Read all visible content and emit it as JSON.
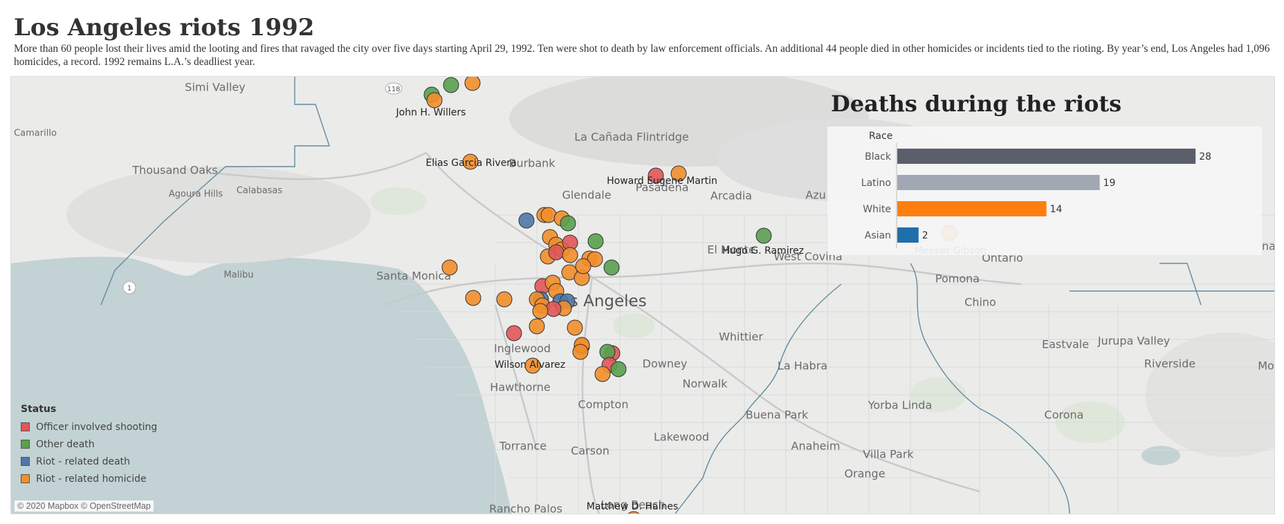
{
  "header": {
    "title": "Los Angeles riots 1992",
    "subtitle": "More than 60 people lost their lives amid the looting and fires that ravaged the city over five days starting April 29, 1992. Ten were shot to death by law enforcement officials. An additional 44 people died in other homicides or incidents tied to the rioting. By year’s end, Los Angeles had 1,096 homicides, a record. 1992 remains L.A.’s deadliest year."
  },
  "map": {
    "attribution": "© 2020 Mapbox © OpenStreetMap",
    "places": [
      {
        "name": "Simi Valley",
        "size": "med"
      },
      {
        "name": "Camarillo",
        "size": "sm"
      },
      {
        "name": "Thousand Oaks",
        "size": "med"
      },
      {
        "name": "Agoura Hills",
        "size": "sm"
      },
      {
        "name": "Calabasas",
        "size": "sm"
      },
      {
        "name": "Malibu",
        "size": "sm"
      },
      {
        "name": "Santa Monica",
        "size": "med"
      },
      {
        "name": "Burbank",
        "size": "med"
      },
      {
        "name": "La Cañada Flintridge",
        "size": "med"
      },
      {
        "name": "Glendale",
        "size": "med"
      },
      {
        "name": "Pasadena",
        "size": "med"
      },
      {
        "name": "Arcadia",
        "size": "med"
      },
      {
        "name": "Los Angeles",
        "size": "big"
      },
      {
        "name": "El Monte",
        "size": "med"
      },
      {
        "name": "West Covina",
        "size": "med"
      },
      {
        "name": "Pomona",
        "size": "med"
      },
      {
        "name": "Ontario",
        "size": "med"
      },
      {
        "name": "Chino",
        "size": "med"
      },
      {
        "name": "Whittier",
        "size": "med"
      },
      {
        "name": "Downey",
        "size": "med"
      },
      {
        "name": "La Habra",
        "size": "med"
      },
      {
        "name": "Norwalk",
        "size": "med"
      },
      {
        "name": "Inglewood",
        "size": "med"
      },
      {
        "name": "Hawthorne",
        "size": "med"
      },
      {
        "name": "Compton",
        "size": "med"
      },
      {
        "name": "Torrance",
        "size": "med"
      },
      {
        "name": "Carson",
        "size": "med"
      },
      {
        "name": "Lakewood",
        "size": "med"
      },
      {
        "name": "Buena Park",
        "size": "med"
      },
      {
        "name": "Anaheim",
        "size": "med"
      },
      {
        "name": "Yorba Linda",
        "size": "med"
      },
      {
        "name": "Villa Park",
        "size": "med"
      },
      {
        "name": "Orange",
        "size": "med"
      },
      {
        "name": "Corona",
        "size": "med"
      },
      {
        "name": "Eastvale",
        "size": "med"
      },
      {
        "name": "Jurupa Valley",
        "size": "med"
      },
      {
        "name": "Riverside",
        "size": "med"
      },
      {
        "name": "Rancho Palos",
        "size": "med"
      },
      {
        "name": "Long Beach",
        "size": "med"
      },
      {
        "name": "Azu",
        "size": "med"
      },
      {
        "name": "Mo",
        "size": "med"
      },
      {
        "name": "na",
        "size": "med"
      }
    ],
    "victim_labels": [
      "John H. Willers",
      "Elias Garcia Rivera",
      "Howard Eugene Martin",
      "Hugo G. Ramirez",
      "Meeker Gibson",
      "Wilson  Alvarez",
      "Matthew D. Haines"
    ],
    "legend": {
      "title": "Status",
      "items": [
        {
          "label": "Officer involved shooting",
          "color": "#e15759"
        },
        {
          "label": "Other death",
          "color": "#59a14f"
        },
        {
          "label": "Riot - related death",
          "color": "#4e79a7"
        },
        {
          "label": "Riot - related homicide",
          "color": "#f28e2b"
        }
      ]
    },
    "markers": [
      {
        "status": "other",
        "label": "John H. Willers"
      },
      {
        "status": "homicide",
        "label": "John H. Willers"
      },
      {
        "status": "other"
      },
      {
        "status": "homicide"
      },
      {
        "status": "homicide",
        "label": "Elias Garcia Rivera"
      },
      {
        "status": "officer",
        "label": "Howard Eugene Martin"
      },
      {
        "status": "homicide"
      },
      {
        "status": "riot"
      },
      {
        "status": "homicide"
      },
      {
        "status": "homicide"
      },
      {
        "status": "homicide"
      },
      {
        "status": "other"
      },
      {
        "status": "homicide"
      },
      {
        "status": "homicide"
      },
      {
        "status": "homicide"
      },
      {
        "status": "officer"
      },
      {
        "status": "other"
      },
      {
        "status": "other",
        "label": "Hugo G. Ramirez"
      },
      {
        "status": "homicide"
      },
      {
        "status": "officer"
      },
      {
        "status": "homicide"
      },
      {
        "status": "homicide"
      },
      {
        "status": "homicide"
      },
      {
        "status": "other"
      },
      {
        "status": "homicide"
      },
      {
        "status": "homicide"
      },
      {
        "status": "homicide"
      },
      {
        "status": "homicide"
      },
      {
        "status": "officer"
      },
      {
        "status": "homicide"
      },
      {
        "status": "homicide"
      },
      {
        "status": "riot"
      },
      {
        "status": "riot"
      },
      {
        "status": "riot"
      },
      {
        "status": "homicide"
      },
      {
        "status": "homicide"
      },
      {
        "status": "homicide"
      },
      {
        "status": "homicide"
      },
      {
        "status": "homicide"
      },
      {
        "status": "officer"
      },
      {
        "status": "homicide"
      },
      {
        "status": "homicide"
      },
      {
        "status": "homicide"
      },
      {
        "status": "officer"
      },
      {
        "status": "homicide"
      },
      {
        "status": "homicide"
      },
      {
        "status": "homicide"
      },
      {
        "status": "officer"
      },
      {
        "status": "other"
      },
      {
        "status": "homicide",
        "label": "Wilson  Alvarez"
      },
      {
        "status": "officer"
      },
      {
        "status": "other"
      },
      {
        "status": "homicide"
      },
      {
        "status": "homicide",
        "label": "Matthew D. Haines"
      },
      {
        "status": "homicide",
        "label": "Meeker Gibson"
      }
    ]
  },
  "chart": {
    "title": "Deaths during the riots",
    "race_header": "Race"
  },
  "chart_data": {
    "type": "bar",
    "orientation": "horizontal",
    "title": "Deaths during the riots",
    "ylabel": "Race",
    "categories": [
      "Black",
      "Latino",
      "White",
      "Asian"
    ],
    "values": [
      28,
      19,
      14,
      2
    ],
    "colors": [
      "#5b5f6b",
      "#a0a8b4",
      "#ff7f0e",
      "#1f6fab"
    ],
    "xlim": [
      0,
      30
    ]
  }
}
